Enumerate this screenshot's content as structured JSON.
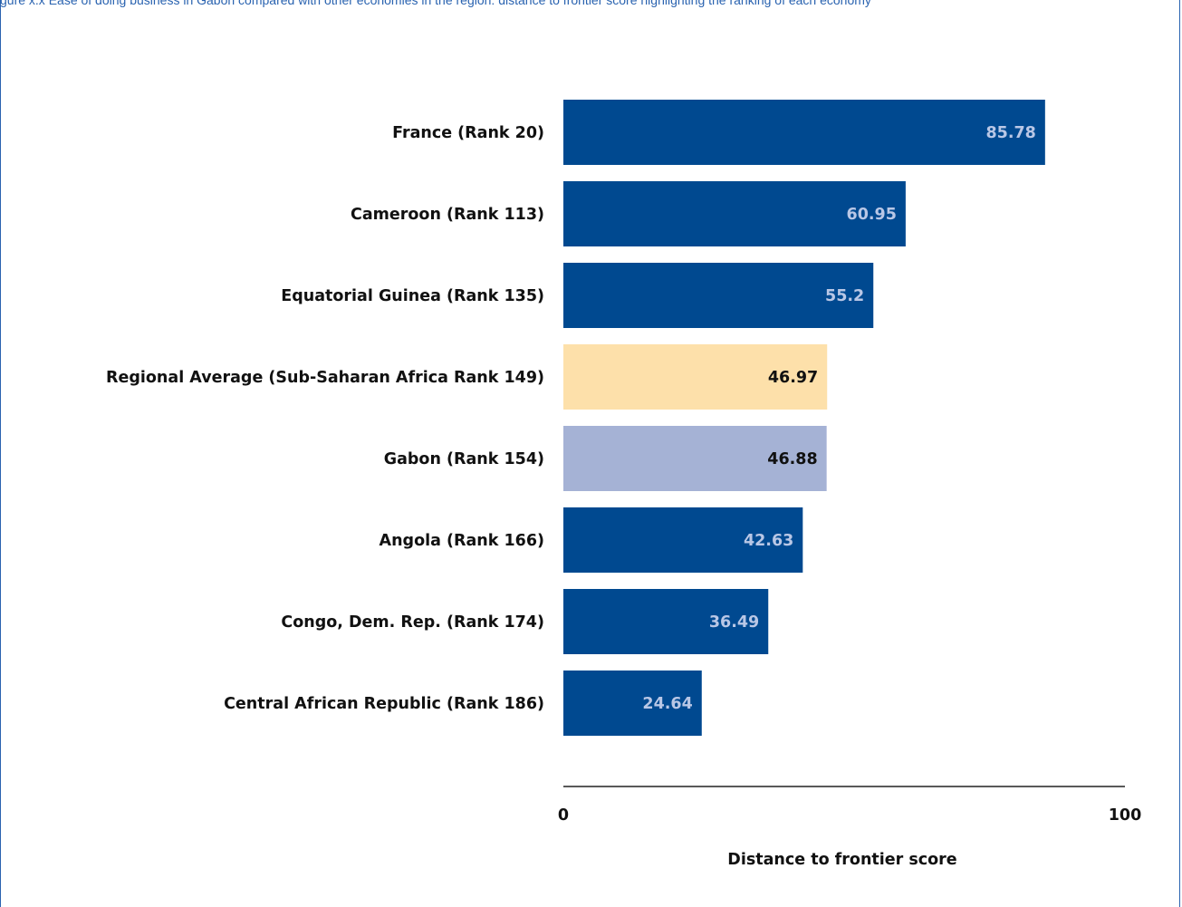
{
  "header": {
    "caption": "gure x.x Ease of doing business in Gabon compared with other economies in the region: distance to frontier score highlighting the ranking of each economy"
  },
  "colors": {
    "bar_default": "#004990",
    "bar_regional": "#fde0aa",
    "bar_highlight": "#a5b2d5",
    "label_on_dark": "#b9c7e6",
    "label_on_light": "#111111",
    "axis_line": "#222222",
    "frame": "#2a63b0"
  },
  "chart_data": {
    "type": "bar",
    "orientation": "horizontal",
    "title": "",
    "categories": [
      "France (Rank 20)",
      "Cameroon (Rank 113)",
      "Equatorial Guinea (Rank 135)",
      "Regional Average (Sub-Saharan Africa Rank 149)",
      "Gabon (Rank 154)",
      "Angola (Rank 166)",
      "Congo, Dem. Rep. (Rank 174)",
      "Central African Republic (Rank 186)"
    ],
    "values": [
      85.78,
      60.95,
      55.2,
      46.97,
      46.88,
      42.63,
      36.49,
      24.64
    ],
    "value_labels": [
      "85.78",
      "60.95",
      "55.2",
      "46.97",
      "46.88",
      "42.63",
      "36.49",
      "24.64"
    ],
    "bar_styles": [
      "default",
      "default",
      "default",
      "regional",
      "highlight",
      "default",
      "default",
      "default"
    ],
    "xlabel": "Distance to frontier score",
    "ylabel": "",
    "xlim": [
      0,
      100
    ],
    "xticks": [
      "0",
      "100"
    ],
    "grid": false,
    "legend": "none"
  }
}
